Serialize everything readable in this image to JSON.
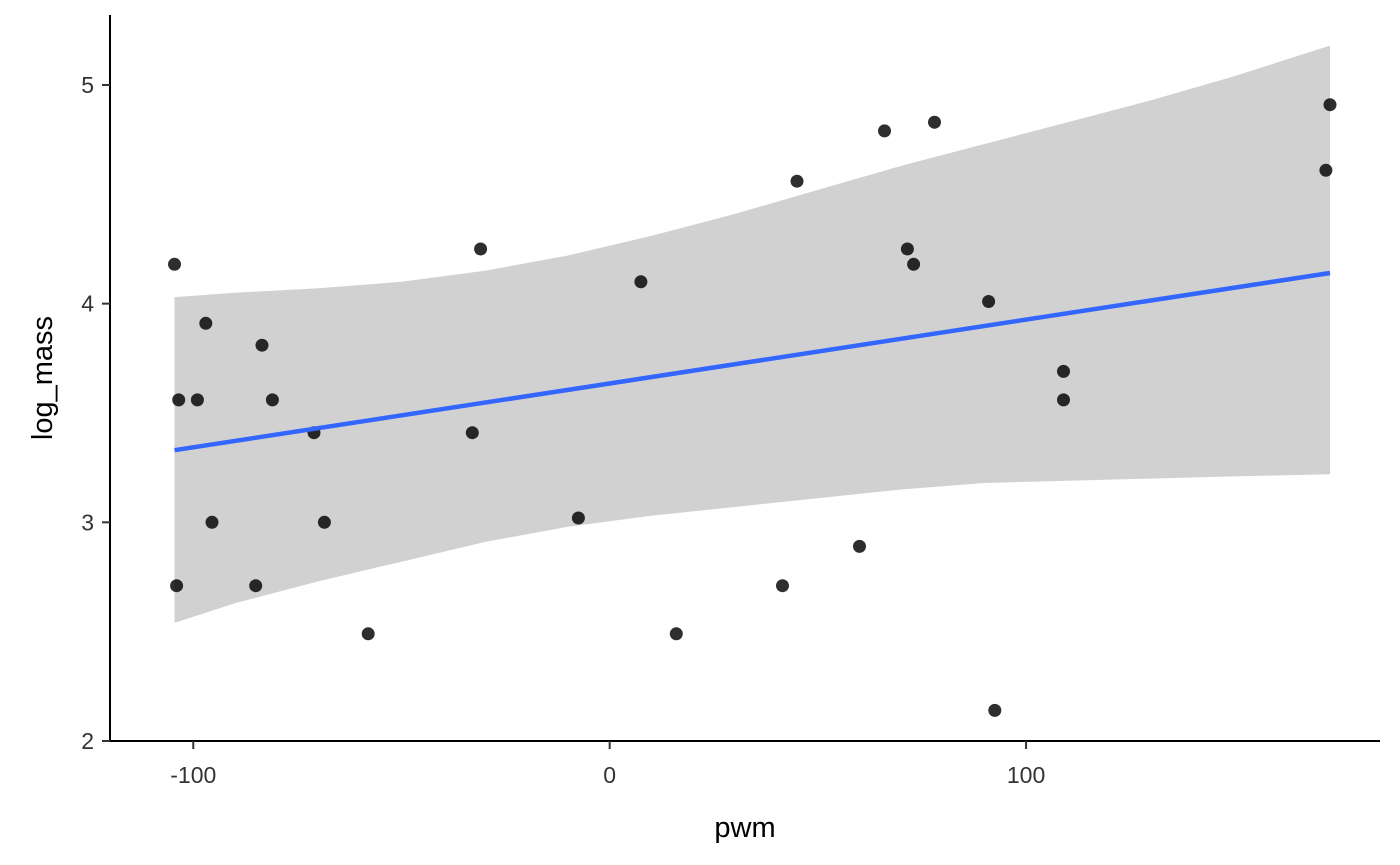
{
  "chart_data": {
    "type": "scatter",
    "title": "",
    "xlabel": "pwm",
    "ylabel": "log_mass",
    "xlim": [
      -120,
      185
    ],
    "ylim": [
      2,
      5.32
    ],
    "xticks": [
      -100,
      0,
      100
    ],
    "xtick_labels": [
      "-100",
      "0",
      "100"
    ],
    "yticks": [
      2,
      3,
      4,
      5
    ],
    "ytick_labels": [
      "2",
      "3",
      "4",
      "5"
    ],
    "grid": false,
    "legend": "none",
    "colors": {
      "points": "#000000",
      "line": "#3366ff",
      "ribbon": "#cccccc"
    },
    "points": [
      {
        "x": -104.5,
        "y": 4.18
      },
      {
        "x": -103.5,
        "y": 3.56
      },
      {
        "x": -104.0,
        "y": 2.71
      },
      {
        "x": -99.0,
        "y": 3.56
      },
      {
        "x": -97.0,
        "y": 3.91
      },
      {
        "x": -95.5,
        "y": 3.0
      },
      {
        "x": -83.5,
        "y": 3.81
      },
      {
        "x": -81.0,
        "y": 3.56
      },
      {
        "x": -85.0,
        "y": 2.71
      },
      {
        "x": -71.0,
        "y": 3.41
      },
      {
        "x": -68.5,
        "y": 3.0
      },
      {
        "x": -58.0,
        "y": 2.49
      },
      {
        "x": -33.0,
        "y": 3.41
      },
      {
        "x": -31.0,
        "y": 4.25
      },
      {
        "x": -7.5,
        "y": 3.02
      },
      {
        "x": 7.5,
        "y": 4.1
      },
      {
        "x": 16.0,
        "y": 2.49
      },
      {
        "x": 41.5,
        "y": 2.71
      },
      {
        "x": 45.0,
        "y": 4.56
      },
      {
        "x": 60.0,
        "y": 2.89
      },
      {
        "x": 66.0,
        "y": 4.79
      },
      {
        "x": 71.5,
        "y": 4.25
      },
      {
        "x": 73.0,
        "y": 4.18
      },
      {
        "x": 78.0,
        "y": 4.83
      },
      {
        "x": 91.0,
        "y": 4.01
      },
      {
        "x": 92.5,
        "y": 2.14
      },
      {
        "x": 109.0,
        "y": 3.69
      },
      {
        "x": 109.0,
        "y": 3.56
      },
      {
        "x": 172.0,
        "y": 4.61
      },
      {
        "x": 173.0,
        "y": 4.91
      }
    ],
    "fit_line": {
      "x": [
        -104.5,
        173.0
      ],
      "y": [
        3.33,
        4.14
      ]
    },
    "confidence_band": {
      "x": [
        -104.5,
        -90,
        -70,
        -50,
        -30,
        -10,
        10,
        30,
        50,
        70,
        90,
        110,
        130,
        150,
        173.0
      ],
      "upper": [
        4.03,
        4.05,
        4.07,
        4.1,
        4.15,
        4.22,
        4.31,
        4.41,
        4.52,
        4.63,
        4.73,
        4.83,
        4.93,
        5.04,
        5.18
      ],
      "lower": [
        2.54,
        2.63,
        2.73,
        2.82,
        2.91,
        2.98,
        3.03,
        3.07,
        3.11,
        3.15,
        3.18,
        3.19,
        3.2,
        3.21,
        3.22
      ]
    }
  }
}
